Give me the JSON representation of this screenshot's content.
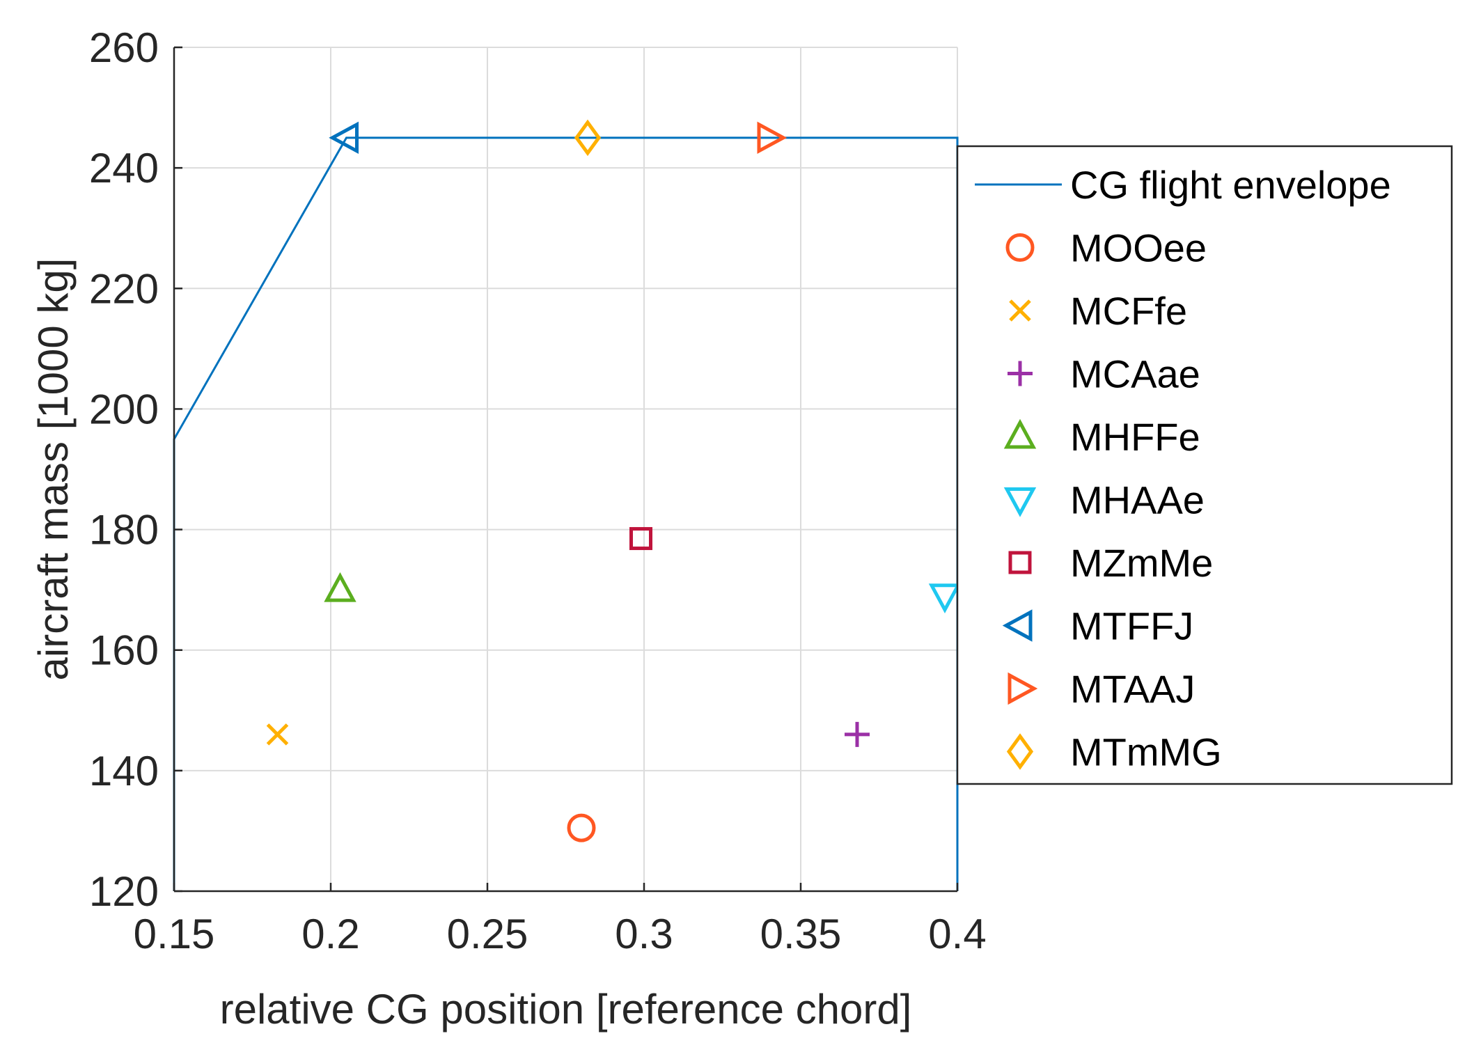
{
  "chart_data": {
    "type": "scatter",
    "title": "",
    "xlabel": "relative CG position [reference chord]",
    "ylabel": "aircraft mass [1000 kg]",
    "xlim": [
      0.15,
      0.4
    ],
    "ylim": [
      120,
      260
    ],
    "grid": true,
    "legend_position": "outside-right",
    "x_ticks": [
      0.15,
      0.2,
      0.25,
      0.3,
      0.35,
      0.4
    ],
    "x_tick_labels": [
      "0.15",
      "0.2",
      "0.25",
      "0.3",
      "0.35",
      "0.4"
    ],
    "y_ticks": [
      120,
      140,
      160,
      180,
      200,
      220,
      240,
      260
    ],
    "y_tick_labels": [
      "120",
      "140",
      "160",
      "180",
      "200",
      "220",
      "240",
      "260"
    ],
    "envelope": {
      "name": "CG flight envelope",
      "color": "#0072BD",
      "x": [
        0.15,
        0.15,
        0.205,
        0.4,
        0.4
      ],
      "y": [
        120,
        195,
        245,
        245,
        120
      ]
    },
    "series": [
      {
        "name": "MOOee",
        "marker": "circle",
        "color": "#FF5722",
        "x": 0.28,
        "y": 130.5
      },
      {
        "name": "MCFfe",
        "marker": "x",
        "color": "#FFB000",
        "x": 0.183,
        "y": 146
      },
      {
        "name": "MCAae",
        "marker": "plus",
        "color": "#9B30A6",
        "x": 0.368,
        "y": 146
      },
      {
        "name": "MHFFe",
        "marker": "triangle-up",
        "color": "#5BAE1F",
        "x": 0.203,
        "y": 170
      },
      {
        "name": "MHAAe",
        "marker": "triangle-down",
        "color": "#1FC8F0",
        "x": 0.396,
        "y": 169
      },
      {
        "name": "MZmMe",
        "marker": "square",
        "color": "#C0143C",
        "x": 0.299,
        "y": 178.5
      },
      {
        "name": "MTFFJ",
        "marker": "triangle-left",
        "color": "#0072BD",
        "x": 0.205,
        "y": 245
      },
      {
        "name": "MTAAJ",
        "marker": "triangle-right",
        "color": "#FF5722",
        "x": 0.34,
        "y": 245
      },
      {
        "name": "MTmMG",
        "marker": "diamond",
        "color": "#FFB000",
        "x": 0.282,
        "y": 245
      }
    ]
  }
}
